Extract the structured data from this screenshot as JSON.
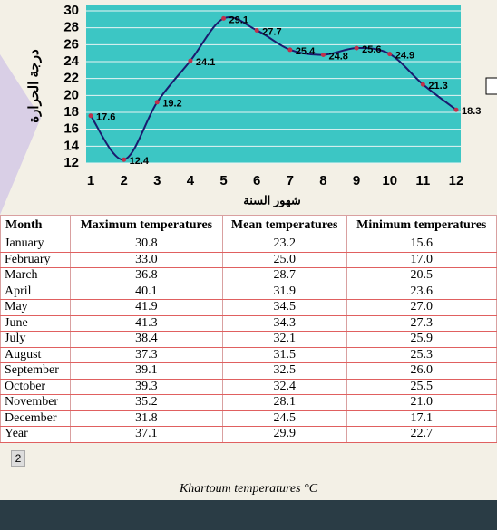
{
  "chart_data": {
    "type": "line",
    "ylabel": "درجة الحرارة",
    "xlabel": "شهور السنة",
    "categories": [
      "1",
      "2",
      "3",
      "4",
      "5",
      "6",
      "7",
      "8",
      "9",
      "10",
      "11",
      "12"
    ],
    "series": [
      {
        "name": "Temperature",
        "color": "#1a1a6e",
        "values": [
          17.6,
          12.4,
          19.2,
          24.1,
          29.1,
          27.7,
          25.4,
          24.8,
          25.6,
          24.9,
          21.3,
          18.3
        ]
      }
    ],
    "ylim": [
      12,
      30
    ],
    "yticks": [
      12,
      14,
      16,
      18,
      20,
      22,
      24,
      26,
      28,
      30
    ],
    "grid": true,
    "background": "#3cc6c4",
    "point_color": "#c0304a"
  },
  "table": {
    "header": [
      "Month",
      "Maximum temperatures",
      "Mean temperatures",
      "Minimum temperatures"
    ],
    "rows": [
      [
        "January",
        "30.8",
        "23.2",
        "15.6"
      ],
      [
        "February",
        "33.0",
        "25.0",
        "17.0"
      ],
      [
        "March",
        "36.8",
        "28.7",
        "20.5"
      ],
      [
        "April",
        "40.1",
        "31.9",
        "23.6"
      ],
      [
        "May",
        "41.9",
        "34.5",
        "27.0"
      ],
      [
        "June",
        "41.3",
        "34.3",
        "27.3"
      ],
      [
        "July",
        "38.4",
        "32.1",
        "25.9"
      ],
      [
        "August",
        "37.3",
        "31.5",
        "25.3"
      ],
      [
        "September",
        "39.1",
        "32.5",
        "26.0"
      ],
      [
        "October",
        "39.3",
        "32.4",
        "25.5"
      ],
      [
        "November",
        "35.2",
        "28.1",
        "21.0"
      ],
      [
        "December",
        "31.8",
        "24.5",
        "17.1"
      ],
      [
        "Year",
        "37.1",
        "29.9",
        "22.7"
      ]
    ],
    "caption": "Khartoum temperatures °C"
  },
  "badge": "2"
}
